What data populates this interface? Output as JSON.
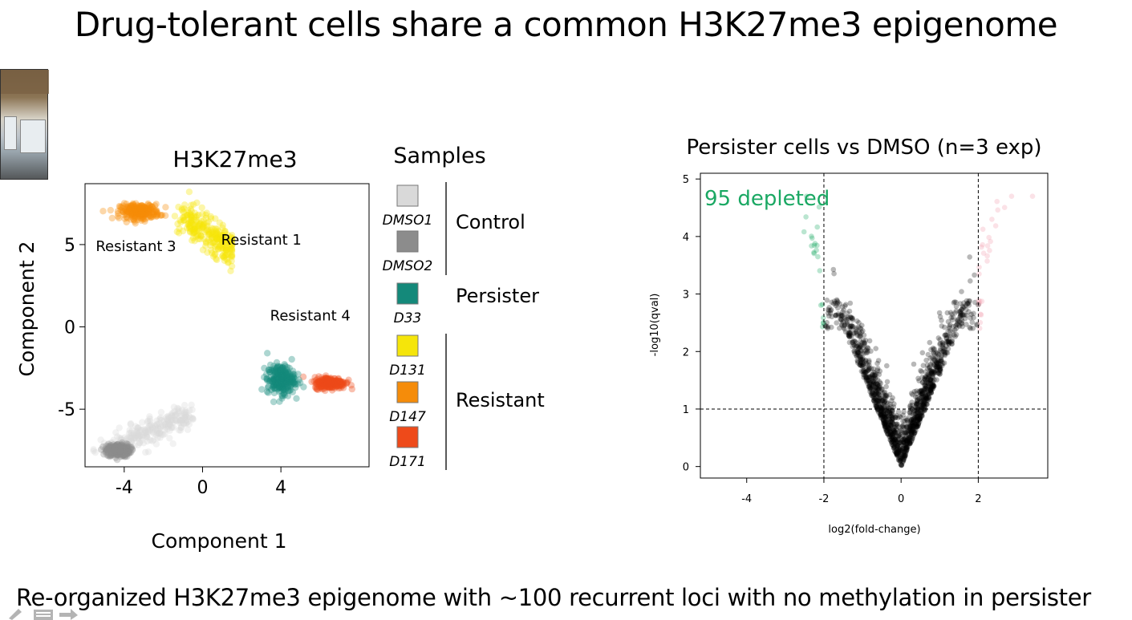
{
  "slide": {
    "title": "Drug-tolerant cells share a common H3K27me3 epigenome",
    "footer": "Re-organized H3K27me3 epigenome with ~100 recurrent loci with no methylation in persister"
  },
  "colors": {
    "DMSO1": "#d9d9d9",
    "DMSO2": "#8c8c8c",
    "D33": "#14897a",
    "D131": "#f5e50a",
    "D147": "#f58c0a",
    "D171": "#ee4a1a",
    "depleted": "#1aa863",
    "enriched": "#f2a0b0",
    "volcano_points": "#000000"
  },
  "icons": [
    "webcam-video-thumbnail",
    "pen-icon",
    "slides-icon",
    "arrow-right-icon"
  ],
  "chart_data": [
    {
      "type": "scatter",
      "title": "H3K27me3",
      "xlabel": "Component 1",
      "ylabel": "Component 2",
      "xlim": [
        -6,
        8.5
      ],
      "ylim": [
        -8.5,
        8.7
      ],
      "xticks": [
        "-4",
        "0",
        "4"
      ],
      "xtick_values": [
        -4,
        0,
        4
      ],
      "yticks": [
        "-5",
        "0",
        "5"
      ],
      "ytick_values": [
        -5,
        0,
        5
      ],
      "cluster_labels": [
        {
          "text": "Resistant 3",
          "x": -3.4,
          "y": 4.6
        },
        {
          "text": "Resistant 1",
          "x": 3.0,
          "y": 5.0
        },
        {
          "text": "Resistant 4",
          "x": 5.5,
          "y": 0.4
        }
      ],
      "legend": {
        "title": "Samples",
        "placement": "right",
        "items": [
          {
            "label": "DMSO1",
            "color": "#d9d9d9",
            "group": "Control"
          },
          {
            "label": "DMSO2",
            "color": "#8c8c8c",
            "group": "Control"
          },
          {
            "label": "D33",
            "color": "#14897a",
            "group": "Persister"
          },
          {
            "label": "D131",
            "color": "#f5e50a",
            "group": "Resistant"
          },
          {
            "label": "D147",
            "color": "#f58c0a",
            "group": "Resistant"
          },
          {
            "label": "D171",
            "color": "#ee4a1a",
            "group": "Resistant"
          }
        ],
        "groups": [
          "Control",
          "Persister",
          "Resistant"
        ]
      },
      "series": [
        {
          "name": "DMSO1",
          "cluster_center": [
            -2.5,
            -6.5
          ],
          "spread": [
            1.6,
            0.7
          ]
        },
        {
          "name": "DMSO2",
          "cluster_center": [
            -4.3,
            -7.5
          ],
          "spread": [
            0.6,
            0.4
          ]
        },
        {
          "name": "D33",
          "cluster_center": [
            4.0,
            -3.2
          ],
          "spread": [
            0.7,
            0.9
          ]
        },
        {
          "name": "D131",
          "cluster_center": [
            0.6,
            6.5
          ],
          "spread": [
            1.1,
            0.9
          ]
        },
        {
          "name": "D147",
          "cluster_center": [
            -3.2,
            7.0
          ],
          "spread": [
            1.0,
            0.45
          ]
        },
        {
          "name": "D171",
          "cluster_center": [
            6.5,
            -3.4
          ],
          "spread": [
            0.8,
            0.35
          ]
        }
      ]
    },
    {
      "type": "scatter",
      "title": "Persister cells vs DMSO (n=3 exp)",
      "xlabel": "log2(fold-change)",
      "ylabel": "-log10(qval)",
      "xlim": [
        -5.2,
        3.8
      ],
      "ylim": [
        -0.2,
        5.1
      ],
      "xticks": [
        "-4",
        "-2",
        "0",
        "2"
      ],
      "xtick_values": [
        -4,
        -2,
        0,
        2
      ],
      "yticks": [
        "0",
        "1",
        "2",
        "3",
        "4",
        "5"
      ],
      "ytick_values": [
        0,
        1,
        2,
        3,
        4,
        5
      ],
      "thresholds": {
        "x": [
          -2,
          2
        ],
        "y": 1
      },
      "annotation": "95 depleted",
      "grid": false
    }
  ]
}
